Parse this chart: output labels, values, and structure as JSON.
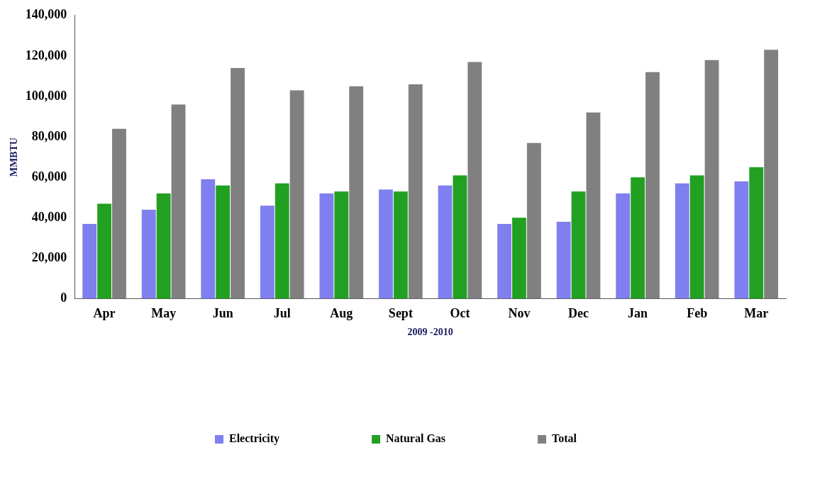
{
  "chart_data": {
    "type": "bar",
    "xlabel": "2009 -2010",
    "ylabel": "MMBTU",
    "categories": [
      "Apr",
      "May",
      "Jun",
      "Jul",
      "Aug",
      "Sept",
      "Oct",
      "Nov",
      "Dec",
      "Jan",
      "Feb",
      "Mar"
    ],
    "series": [
      {
        "name": "Electricity",
        "color": "#7f7fef",
        "values": [
          37000,
          44000,
          59000,
          46000,
          52000,
          54000,
          56000,
          37000,
          38000,
          52000,
          57000,
          58000
        ]
      },
      {
        "name": "Natural Gas",
        "color": "#22a022",
        "values": [
          47000,
          52000,
          56000,
          57000,
          53000,
          53000,
          61000,
          40000,
          53000,
          60000,
          61000,
          65000
        ]
      },
      {
        "name": "Total",
        "color": "#808080",
        "values": [
          84000,
          96000,
          114000,
          103000,
          105000,
          106000,
          117000,
          77000,
          92000,
          112000,
          118000,
          123000
        ]
      }
    ],
    "ylim": [
      0,
      140000
    ],
    "yticks": [
      0,
      {
        "value": 20000,
        "label": "20,000"
      },
      {
        "value": 40000,
        "label": "40,000"
      },
      {
        "value": 60000,
        "label": "60,000"
      },
      {
        "value": 80000,
        "label": "80,000"
      },
      {
        "value": 100000,
        "label": "100,000"
      },
      {
        "value": 120000,
        "label": "120,000"
      },
      {
        "value": 140000,
        "label": "140,000"
      }
    ],
    "grid": false,
    "legend": "bottom"
  }
}
